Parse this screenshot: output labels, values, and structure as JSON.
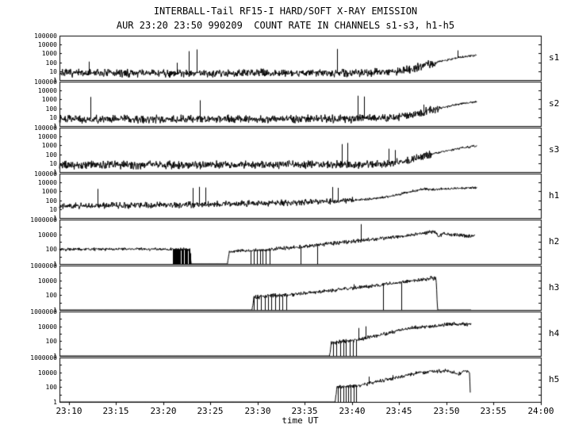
{
  "chart_data": {
    "type": "line",
    "title": "INTERBALL-Tail RF15-I HARD/SOFT X-RAY EMISSION",
    "subtitle": "AUR 23:20 23:50 990209  COUNT RATE IN CHANNELS s1-s3, h1-h5",
    "xlabel": "time UT",
    "y_scale": "log",
    "grid": false,
    "line_color": "#000000",
    "background": "#ffffff",
    "x_domain": [
      -1,
      50
    ],
    "x_ticks": [
      {
        "m": 0,
        "label": "23:10"
      },
      {
        "m": 5,
        "label": "23:15"
      },
      {
        "m": 10,
        "label": "23:20"
      },
      {
        "m": 15,
        "label": "23:25"
      },
      {
        "m": 20,
        "label": "23:30"
      },
      {
        "m": 25,
        "label": "23:35"
      },
      {
        "m": 30,
        "label": "23:40"
      },
      {
        "m": 35,
        "label": "23:45"
      },
      {
        "m": 40,
        "label": "23:50"
      },
      {
        "m": 45,
        "label": "23:55"
      },
      {
        "m": 50,
        "label": "24:00"
      }
    ],
    "noise_seed": 7,
    "panels": [
      {
        "label": "s1",
        "decades": 5,
        "y_ticks": [
          [
            5,
            "100000"
          ],
          [
            4,
            "10000"
          ],
          [
            3,
            "1000"
          ],
          [
            2,
            "100"
          ],
          [
            1,
            "10"
          ],
          [
            0,
            "1"
          ]
        ],
        "noise": 0.22,
        "noise2": 0.06,
        "end": 43.2,
        "env": [
          [
            -1,
            6
          ],
          [
            30,
            6.5
          ],
          [
            34,
            8
          ],
          [
            36,
            15
          ],
          [
            38,
            60
          ],
          [
            40,
            180
          ],
          [
            41.5,
            380
          ],
          [
            43.2,
            650
          ]
        ],
        "spikes": [
          [
            2.1,
            120
          ],
          [
            11.4,
            90
          ],
          [
            12.7,
            1800
          ],
          [
            13.5,
            2800
          ],
          [
            28.4,
            3200
          ],
          [
            41.2,
            2200
          ]
        ],
        "down_spikes": [],
        "clusters": []
      },
      {
        "label": "s2",
        "decades": 5,
        "y_ticks": [
          [
            5,
            "100000"
          ],
          [
            4,
            "10000"
          ],
          [
            3,
            "1000"
          ],
          [
            2,
            "100"
          ],
          [
            1,
            "10"
          ],
          [
            0,
            "1"
          ]
        ],
        "noise": 0.22,
        "noise2": 0.06,
        "end": 43.2,
        "env": [
          [
            -1,
            6
          ],
          [
            30,
            6.5
          ],
          [
            34,
            8
          ],
          [
            36,
            14
          ],
          [
            38,
            50
          ],
          [
            40,
            150
          ],
          [
            41.5,
            320
          ],
          [
            43.2,
            560
          ]
        ],
        "spikes": [
          [
            2.3,
            1900
          ],
          [
            13.9,
            800
          ],
          [
            30.6,
            2600
          ],
          [
            31.3,
            2100
          ],
          [
            37.6,
            260
          ]
        ],
        "down_spikes": [],
        "clusters": []
      },
      {
        "label": "s3",
        "decades": 5,
        "y_ticks": [
          [
            5,
            "100000"
          ],
          [
            4,
            "10000"
          ],
          [
            3,
            "1000"
          ],
          [
            2,
            "100"
          ],
          [
            1,
            "10"
          ],
          [
            0,
            "1"
          ]
        ],
        "noise": 0.22,
        "noise2": 0.06,
        "end": 43.2,
        "env": [
          [
            -1,
            6
          ],
          [
            30,
            7
          ],
          [
            34,
            9
          ],
          [
            36,
            18
          ],
          [
            38,
            80
          ],
          [
            40,
            240
          ],
          [
            41.5,
            500
          ],
          [
            43.2,
            900
          ]
        ],
        "spikes": [
          [
            28.9,
            1400
          ],
          [
            29.5,
            1900
          ],
          [
            33.9,
            420
          ],
          [
            34.5,
            300
          ]
        ],
        "down_spikes": [],
        "clusters": []
      },
      {
        "label": "h1",
        "decades": 5,
        "y_ticks": [
          [
            5,
            "100000"
          ],
          [
            4,
            "10000"
          ],
          [
            3,
            "1000"
          ],
          [
            2,
            "100"
          ],
          [
            1,
            "10"
          ],
          [
            0,
            "1"
          ]
        ],
        "noise": 0.17,
        "noise2": 0.07,
        "end": 43.2,
        "env": [
          [
            -1,
            22
          ],
          [
            10,
            28
          ],
          [
            18,
            40
          ],
          [
            24,
            55
          ],
          [
            28,
            75
          ],
          [
            31,
            110
          ],
          [
            33,
            180
          ],
          [
            35,
            450
          ],
          [
            36.5,
            1100
          ],
          [
            37.8,
            1900
          ],
          [
            38.8,
            1500
          ],
          [
            39.5,
            1900
          ],
          [
            41,
            2100
          ],
          [
            43.2,
            2600
          ]
        ],
        "spikes": [
          [
            3.0,
            1900
          ],
          [
            13.1,
            2400
          ],
          [
            13.8,
            3200
          ],
          [
            14.5,
            2700
          ],
          [
            27.9,
            3100
          ],
          [
            28.5,
            2500
          ]
        ],
        "down_spikes": [],
        "clusters": []
      },
      {
        "label": "h2",
        "decades": 6,
        "y_ticks": [
          [
            6,
            "1000000"
          ],
          [
            4,
            "10000"
          ],
          [
            2,
            "100"
          ],
          [
            0,
            "1"
          ]
        ],
        "noise": 0.1,
        "noise2": 0.12,
        "end": 43.0,
        "env": [
          [
            -1,
            100
          ],
          [
            12.8,
            100
          ],
          [
            12.95,
            1.05
          ],
          [
            16.8,
            1.05
          ],
          [
            17.0,
            55
          ],
          [
            19,
            65
          ],
          [
            21,
            85
          ],
          [
            24,
            180
          ],
          [
            27,
            450
          ],
          [
            30,
            1100
          ],
          [
            32,
            2200
          ],
          [
            34,
            3800
          ],
          [
            36,
            7500
          ],
          [
            37.5,
            14000
          ],
          [
            38.3,
            21000
          ],
          [
            38.8,
            19000
          ],
          [
            39.15,
            5000
          ],
          [
            39.6,
            11000
          ],
          [
            41,
            9500
          ],
          [
            42,
            7000
          ],
          [
            43,
            5000
          ]
        ],
        "spikes": [
          [
            30.9,
            240000
          ]
        ],
        "down_spikes": [
          [
            24.5,
            1
          ],
          [
            26.3,
            1
          ]
        ],
        "clusters": [
          {
            "t0": 11.0,
            "t1": 12.85,
            "low": 1,
            "n": 22
          },
          {
            "t0": 19.2,
            "t1": 21.2,
            "low": 1,
            "n": 7
          }
        ]
      },
      {
        "label": "h3",
        "decades": 6,
        "y_ticks": [
          [
            6,
            "1000000"
          ],
          [
            4,
            "10000"
          ],
          [
            2,
            "100"
          ],
          [
            0,
            "1"
          ]
        ],
        "noise": 0.15,
        "noise2": 0.12,
        "end": 42.6,
        "env": [
          [
            -1,
            1
          ],
          [
            19.4,
            1
          ],
          [
            19.6,
            55
          ],
          [
            21,
            75
          ],
          [
            23,
            100
          ],
          [
            25,
            170
          ],
          [
            27,
            330
          ],
          [
            29,
            650
          ],
          [
            31,
            1200
          ],
          [
            33,
            2400
          ],
          [
            35,
            5000
          ],
          [
            36.5,
            9000
          ],
          [
            37.8,
            15000
          ],
          [
            38.4,
            20000
          ],
          [
            38.9,
            17000
          ],
          [
            39.05,
            1
          ],
          [
            42.6,
            1
          ]
        ],
        "spikes": [
          [
            30.2,
            3000
          ]
        ],
        "down_spikes": [
          [
            33.3,
            1
          ],
          [
            35.2,
            1
          ]
        ],
        "clusters": [
          {
            "t0": 19.6,
            "t1": 23.0,
            "low": 1,
            "n": 10
          }
        ]
      },
      {
        "label": "h4",
        "decades": 6,
        "y_ticks": [
          [
            6,
            "1000000"
          ],
          [
            4,
            "10000"
          ],
          [
            2,
            "100"
          ],
          [
            0,
            "1"
          ]
        ],
        "noise": 0.15,
        "noise2": 0.12,
        "end": 42.62,
        "env": [
          [
            -1,
            1
          ],
          [
            27.6,
            1
          ],
          [
            27.8,
            65
          ],
          [
            29,
            90
          ],
          [
            30,
            120
          ],
          [
            31,
            200
          ],
          [
            32,
            380
          ],
          [
            33,
            750
          ],
          [
            34,
            1400
          ],
          [
            35,
            2800
          ],
          [
            36,
            5000
          ],
          [
            37,
            7800
          ],
          [
            38,
            10000
          ],
          [
            39,
            12500
          ],
          [
            40,
            17000
          ],
          [
            40.8,
            24000
          ],
          [
            41.6,
            21000
          ],
          [
            42.6,
            17000
          ],
          [
            42.62,
            1
          ]
        ],
        "spikes": [
          [
            30.7,
            6000
          ],
          [
            31.4,
            10000
          ]
        ],
        "down_spikes": [],
        "clusters": [
          {
            "t0": 28.0,
            "t1": 30.4,
            "low": 1,
            "n": 8
          }
        ]
      },
      {
        "label": "h5",
        "decades": 6,
        "y_ticks": [
          [
            6,
            "1000000"
          ],
          [
            4,
            "10000"
          ],
          [
            2,
            "100"
          ],
          [
            0,
            "1"
          ]
        ],
        "noise": 0.15,
        "noise2": 0.12,
        "end": 42.55,
        "env": [
          [
            -1,
            1
          ],
          [
            28.2,
            1
          ],
          [
            28.4,
            95
          ],
          [
            30,
            130
          ],
          [
            31,
            200
          ],
          [
            32,
            340
          ],
          [
            33,
            680
          ],
          [
            34,
            1200
          ],
          [
            35,
            2400
          ],
          [
            36,
            4800
          ],
          [
            37,
            8500
          ],
          [
            38,
            11500
          ],
          [
            39,
            13500
          ],
          [
            40,
            15500
          ],
          [
            40.8,
            9000
          ],
          [
            41.3,
            6000
          ],
          [
            41.9,
            14000
          ],
          [
            42.45,
            11000
          ],
          [
            42.55,
            1
          ]
        ],
        "spikes": [
          [
            31.8,
            2600
          ],
          [
            34.3,
            4200
          ]
        ],
        "down_spikes": [],
        "clusters": [
          {
            "t0": 28.5,
            "t1": 30.4,
            "low": 1,
            "n": 8
          }
        ]
      }
    ]
  }
}
